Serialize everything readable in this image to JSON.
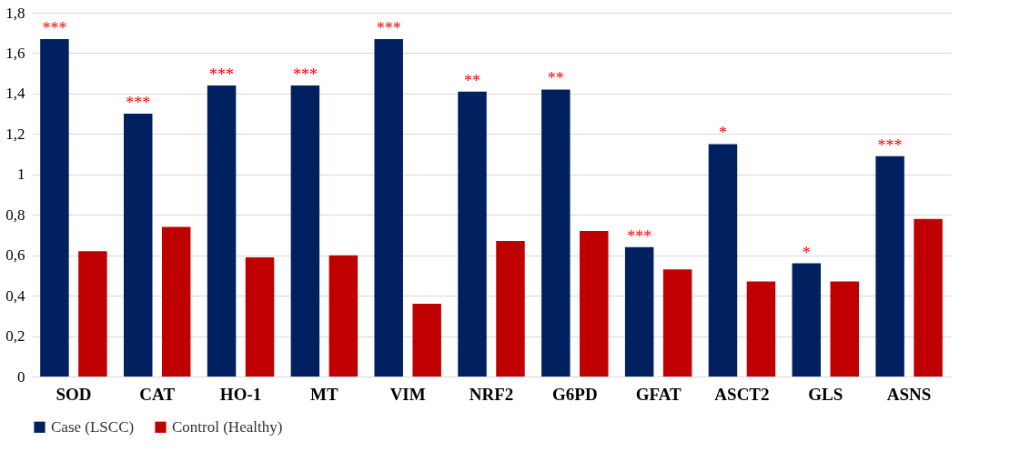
{
  "chart_data": {
    "type": "bar",
    "categories": [
      "SOD",
      "CAT",
      "HO-1",
      "MT",
      "VIM",
      "NRF2",
      "G6PD",
      "GFAT",
      "ASCT2",
      "GLS",
      "ASNS"
    ],
    "series": [
      {
        "name": "Case (LSCC)",
        "color": "#002060",
        "values": [
          1.67,
          1.3,
          1.44,
          1.44,
          1.67,
          1.41,
          1.42,
          0.64,
          1.15,
          0.56,
          1.09
        ],
        "value_labels": [
          "***",
          "***",
          "***",
          "***",
          "***",
          "**",
          "**",
          "***",
          "*",
          "*",
          "***"
        ]
      },
      {
        "name": "Control (Healthy)",
        "color": "#c00000",
        "values": [
          0.62,
          0.74,
          0.59,
          0.6,
          0.36,
          0.67,
          0.72,
          0.53,
          0.47,
          0.47,
          0.78
        ]
      }
    ],
    "ylim": [
      0,
      1.8
    ],
    "yticks": [
      0,
      {
        "value": 0.2,
        "label": "0,2"
      },
      {
        "value": 0.4,
        "label": "0,4"
      },
      {
        "value": 0.6,
        "label": "0,6"
      },
      {
        "value": 0.8,
        "label": "0,8"
      },
      1,
      {
        "value": 1.2,
        "label": "1,2"
      },
      {
        "value": 1.4,
        "label": "1,4"
      },
      {
        "value": 1.6,
        "label": "1,6"
      },
      {
        "value": 1.8,
        "label": "1,8"
      }
    ],
    "grid": "y",
    "legend": "bottom"
  }
}
